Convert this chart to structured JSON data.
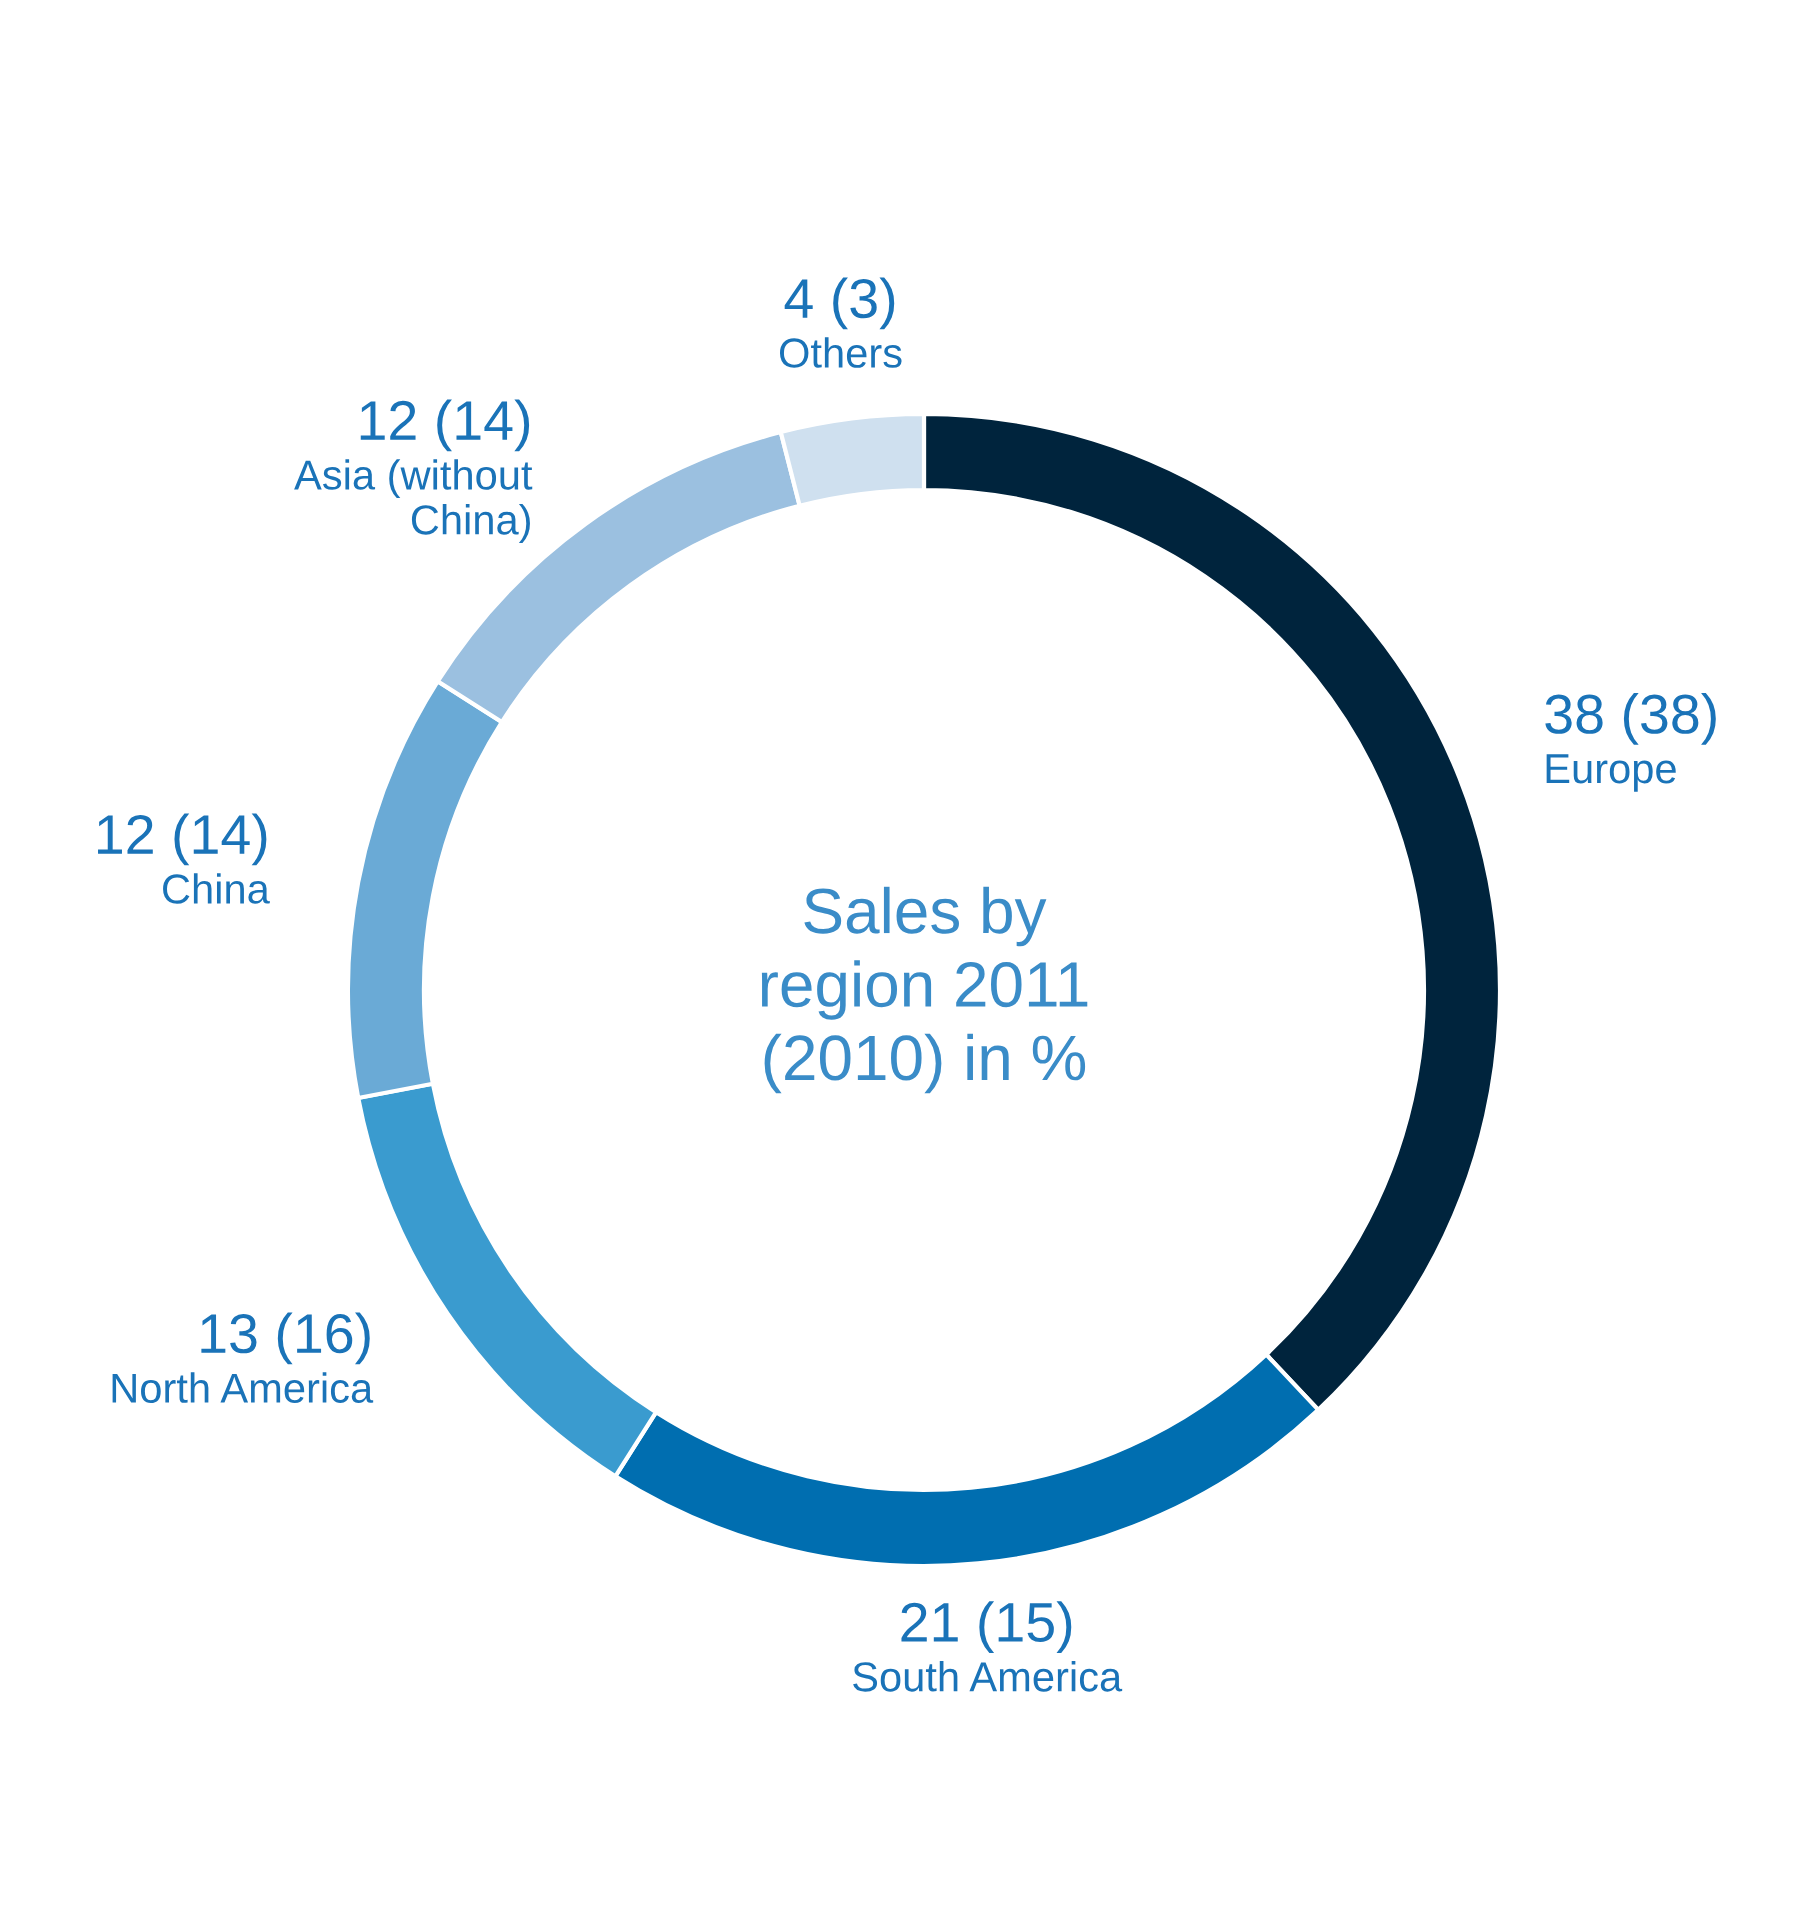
{
  "chart_data": {
    "type": "donut",
    "title": "Sales by\nregion 2011\n(2010) in %",
    "categories": [
      "Europe",
      "South America",
      "North America",
      "China",
      "Asia (without\nChina)",
      "Others"
    ],
    "values": [
      38,
      21,
      13,
      12,
      12,
      4
    ],
    "value_labels": [
      "38 (38)",
      "21 (15)",
      "13 (16)",
      "12 (14)",
      "12 (14)",
      "4 (3)"
    ],
    "colors": [
      "#00243d",
      "#006eb0",
      "#3a9bcf",
      "#6aaad6",
      "#9bc0e0",
      "#cfe0ef"
    ],
    "legend": false
  }
}
